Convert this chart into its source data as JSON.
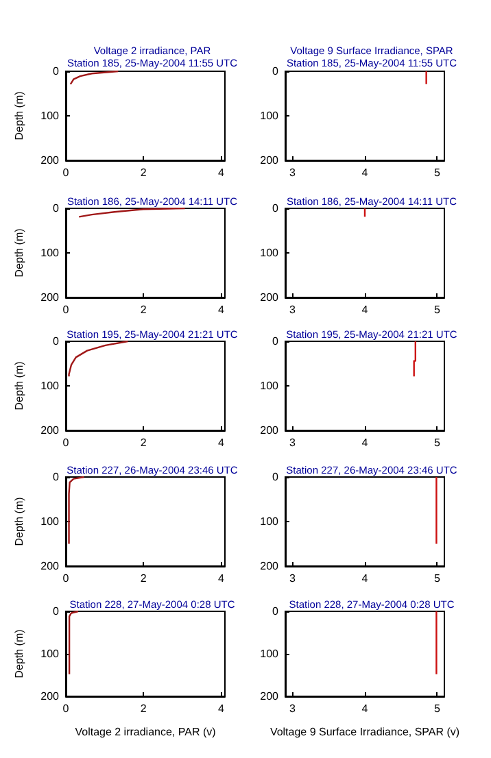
{
  "chart_data": [
    {
      "type": "line",
      "title": "Voltage 2 irradiance, PAR",
      "subtitle": "Station 185, 25-May-2004 11:55 UTC",
      "ylabel": "Depth (m)",
      "xlim": [
        0,
        4.1
      ],
      "xticks": [
        0,
        2,
        4
      ],
      "ylim": [
        200,
        0
      ],
      "yticks": [
        0,
        100,
        200
      ],
      "series": [
        {
          "color": "#a01818",
          "x": [
            1.35,
            0.67,
            0.37,
            0.2,
            0.12
          ],
          "values": [
            0,
            5,
            11,
            18,
            29
          ]
        }
      ]
    },
    {
      "type": "line",
      "title": "Voltage 9 Surface Irradiance, SPAR",
      "subtitle": "Station 185, 25-May-2004 11:55 UTC",
      "xlim": [
        2.9,
        5.1
      ],
      "xticks": [
        3,
        4,
        5
      ],
      "ylim": [
        200,
        0
      ],
      "yticks": [
        0,
        100,
        200
      ],
      "series": [
        {
          "color": "#cc1111",
          "x": [
            4.85,
            4.85
          ],
          "values": [
            0,
            29
          ]
        }
      ]
    },
    {
      "type": "line",
      "title": "Station 186, 25-May-2004 14:11 UTC",
      "ylabel": "Depth (m)",
      "xlim": [
        0,
        4.1
      ],
      "xticks": [
        0,
        2,
        4
      ],
      "ylim": [
        200,
        0
      ],
      "yticks": [
        0,
        100,
        200
      ],
      "series": [
        {
          "color": "#a01818",
          "x": [
            3.07,
            2.0,
            1.25,
            0.67,
            0.34
          ],
          "values": [
            0,
            2,
            8,
            14,
            19
          ]
        }
      ]
    },
    {
      "type": "line",
      "title": "Station 186, 25-May-2004 14:11 UTC",
      "xlim": [
        2.9,
        5.1
      ],
      "xticks": [
        3,
        4,
        5
      ],
      "ylim": [
        200,
        0
      ],
      "yticks": [
        0,
        100,
        200
      ],
      "series": [
        {
          "color": "#cc1111",
          "x": [
            4.0,
            4.0
          ],
          "values": [
            0,
            19
          ]
        }
      ]
    },
    {
      "type": "line",
      "title": "Station 195, 25-May-2004 21:21 UTC",
      "ylabel": "Depth (m)",
      "xlim": [
        0,
        4.1
      ],
      "xticks": [
        0,
        2,
        4
      ],
      "ylim": [
        200,
        0
      ],
      "yticks": [
        0,
        100,
        200
      ],
      "series": [
        {
          "color": "#a01818",
          "x": [
            1.6,
            1.02,
            0.55,
            0.26,
            0.14,
            0.08,
            0.08
          ],
          "values": [
            0,
            9,
            21,
            36,
            53,
            74,
            79
          ]
        }
      ]
    },
    {
      "type": "line",
      "title": "Station 195, 25-May-2004 21:21 UTC",
      "xlim": [
        2.9,
        5.1
      ],
      "xticks": [
        3,
        4,
        5
      ],
      "ylim": [
        200,
        0
      ],
      "yticks": [
        0,
        100,
        200
      ],
      "series": [
        {
          "color": "#cc1111",
          "x": [
            4.7,
            4.7,
            4.68,
            4.68
          ],
          "values": [
            0,
            44,
            44,
            79
          ]
        }
      ]
    },
    {
      "type": "line",
      "title": "Station 227, 26-May-2004 23:46 UTC",
      "ylabel": "Depth (m)",
      "xlim": [
        0,
        4.1
      ],
      "xticks": [
        0,
        2,
        4
      ],
      "ylim": [
        200,
        0
      ],
      "yticks": [
        0,
        100,
        200
      ],
      "series": [
        {
          "color": "#a01818",
          "x": [
            0.47,
            0.2,
            0.1,
            0.08,
            0.08
          ],
          "values": [
            0,
            4,
            12,
            38,
            150
          ]
        }
      ]
    },
    {
      "type": "line",
      "title": "Station 227, 26-May-2004 23:46 UTC",
      "xlim": [
        2.9,
        5.1
      ],
      "xticks": [
        3,
        4,
        5
      ],
      "ylim": [
        200,
        0
      ],
      "yticks": [
        0,
        100,
        200
      ],
      "series": [
        {
          "color": "#cc1111",
          "x": [
            4.99,
            4.99
          ],
          "values": [
            0,
            150
          ]
        }
      ]
    },
    {
      "type": "line",
      "title": "Station 228, 27-May-2004 0:28 UTC",
      "xlabel": "Voltage 2 irradiance, PAR (v)",
      "ylabel": "Depth (m)",
      "xlim": [
        0,
        4.1
      ],
      "xticks": [
        0,
        2,
        4
      ],
      "ylim": [
        200,
        0
      ],
      "yticks": [
        0,
        100,
        200
      ],
      "series": [
        {
          "color": "#a01818",
          "x": [
            0.32,
            0.14,
            0.09,
            0.09
          ],
          "values": [
            0,
            4,
            12,
            148
          ]
        }
      ]
    },
    {
      "type": "line",
      "title": "Station 228, 27-May-2004 0:28 UTC",
      "xlabel": "Voltage 9 Surface Irradiance, SPAR (v)",
      "xlim": [
        2.9,
        5.1
      ],
      "xticks": [
        3,
        4,
        5
      ],
      "ylim": [
        200,
        0
      ],
      "yticks": [
        0,
        100,
        200
      ],
      "series": [
        {
          "color": "#cc1111",
          "x": [
            4.99,
            4.99
          ],
          "values": [
            0,
            148
          ]
        }
      ]
    }
  ]
}
